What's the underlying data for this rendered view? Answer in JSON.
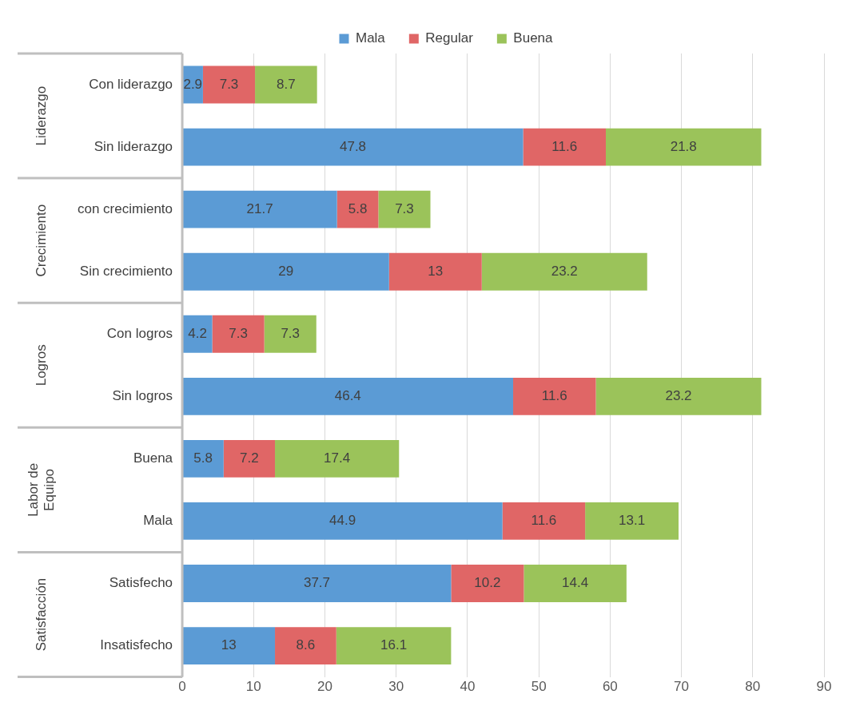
{
  "chart_data": {
    "type": "bar",
    "orientation": "horizontal",
    "stacked": true,
    "categories": [
      "Con liderazgo",
      "Sin liderazgo",
      "con crecimiento",
      "Sin crecimiento",
      "Con logros",
      "Sin logros",
      "Buena",
      "Mala",
      "Satisfecho",
      "Insatisfecho"
    ],
    "series": [
      {
        "name": "Mala",
        "color": "#5b9bd5",
        "values": [
          2.9,
          47.8,
          21.7,
          29,
          4.2,
          46.4,
          5.8,
          44.9,
          37.7,
          13
        ]
      },
      {
        "name": "Regular",
        "color": "#e06666",
        "values": [
          7.3,
          11.6,
          5.8,
          13,
          7.3,
          11.6,
          7.2,
          11.6,
          10.2,
          8.6
        ]
      },
      {
        "name": "Buena",
        "color": "#9bc35a",
        "values": [
          8.7,
          21.8,
          7.3,
          23.2,
          7.3,
          23.2,
          17.4,
          13.1,
          14.4,
          16.1
        ]
      }
    ],
    "annotations": [
      "Liderazgo",
      "Crecimiento",
      "Logros",
      "Labor de Equipo",
      "Satisfacción"
    ],
    "xlim": [
      0,
      90
    ],
    "xticks": [
      0,
      10,
      20,
      30,
      40,
      50,
      60,
      70,
      80,
      90
    ],
    "grid": "x",
    "legend": "top",
    "data_labels": true
  }
}
